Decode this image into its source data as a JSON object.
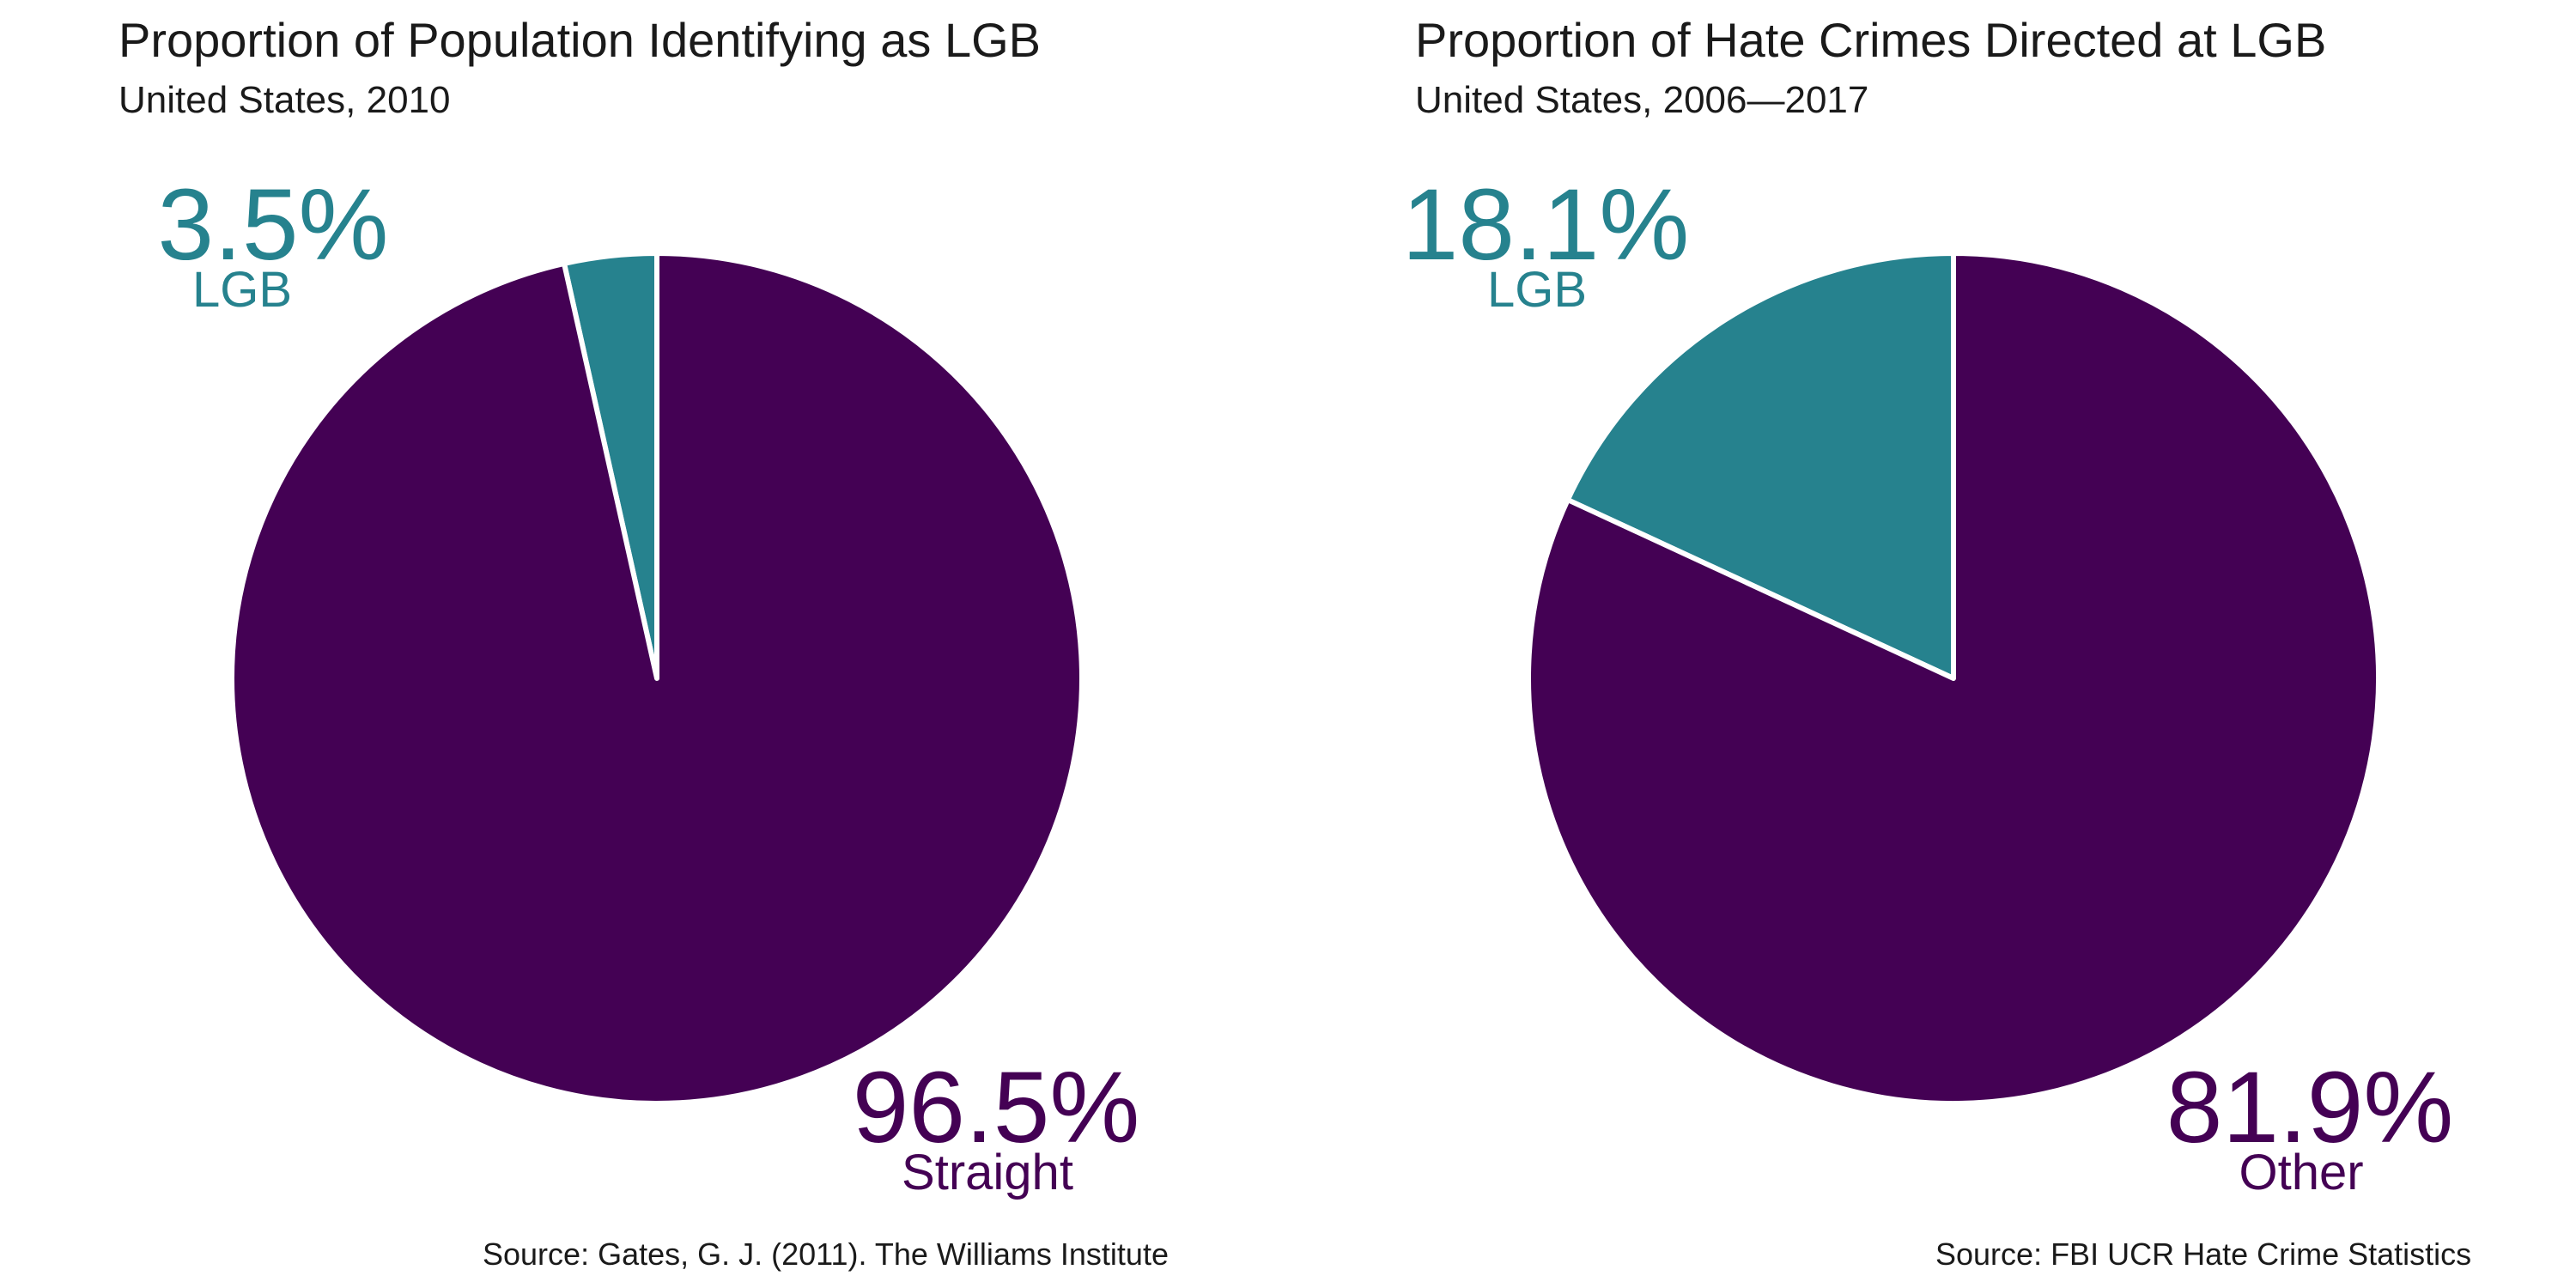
{
  "chart_data": [
    {
      "type": "pie",
      "title": "Proportion of Population Identifying as LGB",
      "subtitle": "United States, 2010",
      "source": "Source: Gates, G. J. (2011). The Williams Institute",
      "slices": [
        {
          "label": "LGB",
          "value": 3.5,
          "value_text": "3.5%",
          "color": "#26828e"
        },
        {
          "label": "Straight",
          "value": 96.5,
          "value_text": "96.5%",
          "color": "#440154"
        }
      ]
    },
    {
      "type": "pie",
      "title": "Proportion of Hate Crimes Directed at LGB",
      "subtitle": "United States, 2006—2017",
      "source": "Source: FBI UCR Hate Crime Statistics",
      "slices": [
        {
          "label": "LGB",
          "value": 18.1,
          "value_text": "18.1%",
          "color": "#26828e"
        },
        {
          "label": "Other",
          "value": 81.9,
          "value_text": "81.9%",
          "color": "#440154"
        }
      ]
    }
  ]
}
